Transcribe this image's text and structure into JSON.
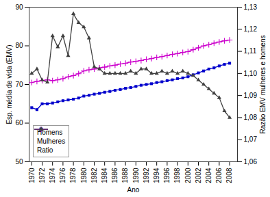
{
  "chart_data": {
    "type": "line",
    "xlabel": "Ano",
    "ylabel": "Esp. média de vida (EMV)",
    "y2label": "Razão EMV mulheres e homens",
    "x": [
      1970,
      1971,
      1972,
      1973,
      1974,
      1975,
      1976,
      1977,
      1978,
      1979,
      1980,
      1981,
      1982,
      1983,
      1984,
      1985,
      1986,
      1987,
      1988,
      1989,
      1990,
      1991,
      1992,
      1993,
      1994,
      1995,
      1996,
      1997,
      1998,
      1999,
      2000,
      2001,
      2002,
      2003,
      2004,
      2005,
      2006,
      2007,
      2008
    ],
    "series": [
      {
        "name": "Homens",
        "color": "#0000cc",
        "marker": "square",
        "values": [
          64.0,
          63.5,
          65.0,
          65.0,
          65.2,
          65.5,
          65.8,
          66.0,
          66.2,
          66.5,
          67.0,
          67.2,
          67.5,
          67.7,
          68.0,
          68.2,
          68.5,
          68.7,
          69.0,
          69.2,
          69.5,
          69.8,
          70.0,
          70.2,
          70.5,
          70.7,
          71.0,
          71.2,
          71.5,
          71.7,
          72.0,
          72.5,
          73.0,
          73.5,
          74.0,
          74.3,
          74.8,
          75.2,
          75.5
        ]
      },
      {
        "name": "Mulheres",
        "color": "#cc00cc",
        "marker": "plus",
        "values": [
          70.5,
          70.8,
          71.0,
          71.2,
          71.0,
          71.2,
          71.5,
          72.0,
          72.3,
          72.8,
          73.5,
          73.8,
          74.0,
          74.3,
          74.5,
          74.8,
          75.0,
          75.3,
          75.5,
          75.8,
          76.0,
          76.2,
          76.5,
          76.7,
          77.0,
          77.2,
          77.5,
          77.8,
          78.0,
          78.3,
          78.5,
          79.0,
          79.5,
          80.0,
          80.3,
          80.7,
          81.0,
          81.3,
          81.5
        ]
      },
      {
        "name": "Ratio",
        "color": "#404040",
        "marker": "triangle",
        "axis": "y2",
        "values": [
          1.1,
          1.102,
          1.097,
          1.096,
          1.117,
          1.112,
          1.117,
          1.108,
          1.127,
          1.123,
          1.121,
          1.116,
          1.103,
          1.102,
          1.1,
          1.1,
          1.1,
          1.1,
          1.1,
          1.101,
          1.1,
          1.102,
          1.102,
          1.1,
          1.1,
          1.101,
          1.1,
          1.101,
          1.1,
          1.101,
          1.1,
          1.099,
          1.097,
          1.095,
          1.093,
          1.091,
          1.089,
          1.083,
          1.08
        ]
      }
    ],
    "xlim": [
      1969.5,
      2009.5
    ],
    "xticks": [
      1970,
      1972,
      1974,
      1976,
      1978,
      1980,
      1982,
      1984,
      1986,
      1988,
      1990,
      1992,
      1994,
      1996,
      1998,
      2000,
      2002,
      2004,
      2006,
      2008
    ],
    "ylim": [
      50,
      90
    ],
    "yticks": [
      50,
      60,
      70,
      80,
      90
    ],
    "y2lim": [
      1.06,
      1.13
    ],
    "y2ticks": [
      {
        "value": 1.06,
        "label": "1,06"
      },
      {
        "value": 1.07,
        "label": "1,07"
      },
      {
        "value": 1.08,
        "label": "1,08"
      },
      {
        "value": 1.09,
        "label": "1,09"
      },
      {
        "value": 1.1,
        "label": "1,10"
      },
      {
        "value": 1.11,
        "label": "1,11"
      },
      {
        "value": 1.12,
        "label": "1,12"
      },
      {
        "value": 1.13,
        "label": "1,13"
      }
    ],
    "legend": "lower left",
    "grid": false
  }
}
